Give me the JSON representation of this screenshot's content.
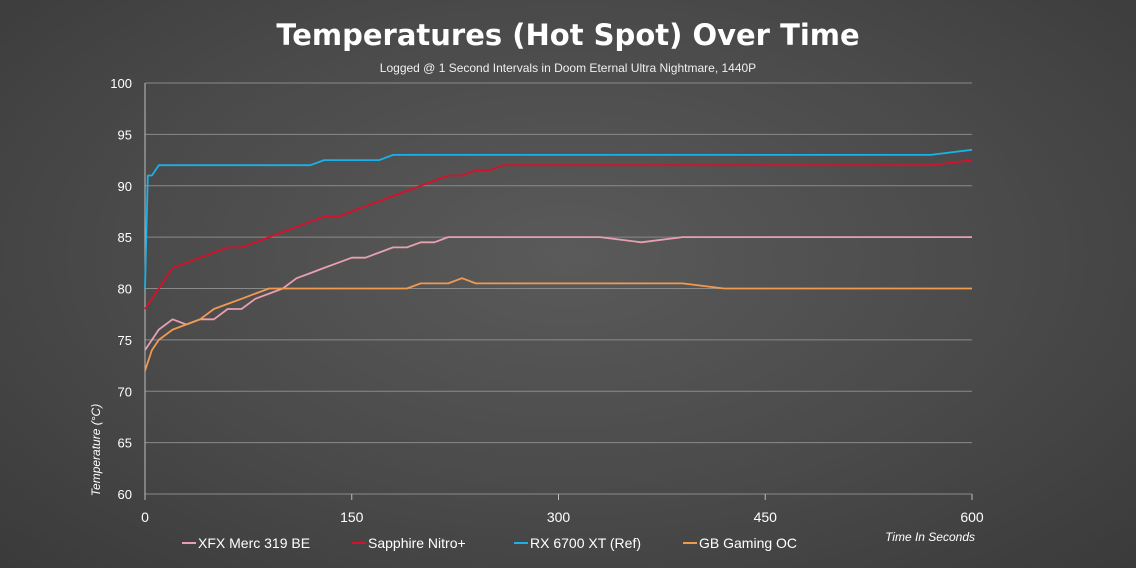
{
  "chart_data": {
    "type": "line",
    "title": "Temperatures (Hot Spot) Over Time",
    "subtitle": "Logged @ 1 Second Intervals in Doom Eternal Ultra Nightmare, 1440P",
    "xlabel": "Time In Seconds",
    "ylabel": "Temperature  (°C)",
    "xlim": [
      0,
      600
    ],
    "ylim": [
      60,
      100
    ],
    "xticks": [
      0,
      150,
      300,
      450,
      600
    ],
    "yticks": [
      60,
      65,
      70,
      75,
      80,
      85,
      90,
      95,
      100
    ],
    "grid": "horizontal",
    "legend_position": "bottom",
    "series": [
      {
        "name": "XFX Merc 319 BE",
        "color": "#e8a0b0",
        "x": [
          0,
          5,
          10,
          20,
          30,
          40,
          50,
          60,
          70,
          80,
          90,
          100,
          110,
          120,
          130,
          140,
          150,
          160,
          170,
          180,
          190,
          200,
          210,
          220,
          230,
          240,
          250,
          260,
          270,
          280,
          290,
          300,
          330,
          360,
          390,
          420,
          450,
          480,
          510,
          540,
          570,
          600
        ],
        "values": [
          74,
          75,
          76,
          77,
          76.5,
          77,
          77,
          78,
          78,
          79,
          79.5,
          80,
          81,
          81.5,
          82,
          82.5,
          83,
          83,
          83.5,
          84,
          84,
          84.5,
          84.5,
          85,
          85,
          85,
          85,
          85,
          85,
          85,
          85,
          85,
          85,
          84.5,
          85,
          85,
          85,
          85,
          85,
          85,
          85,
          85
        ]
      },
      {
        "name": "Sapphire Nitro+",
        "color": "#d8102a",
        "x": [
          0,
          5,
          10,
          20,
          30,
          40,
          50,
          60,
          70,
          80,
          90,
          100,
          110,
          120,
          130,
          140,
          150,
          160,
          170,
          180,
          190,
          200,
          210,
          220,
          230,
          240,
          250,
          260,
          270,
          280,
          290,
          300,
          330,
          360,
          390,
          420,
          450,
          480,
          510,
          540,
          570,
          600
        ],
        "values": [
          78,
          79,
          80,
          82,
          82.5,
          83,
          83.5,
          84,
          84,
          84.5,
          85,
          85.5,
          86,
          86.5,
          87,
          87,
          87.5,
          88,
          88.5,
          89,
          89.5,
          90,
          90.5,
          91,
          91,
          91.5,
          91.5,
          92,
          92,
          92,
          92,
          92,
          92,
          92,
          92,
          92,
          92,
          92,
          92,
          92,
          92,
          92.5
        ]
      },
      {
        "name": "RX 6700 XT (Ref)",
        "color": "#1ab0e8",
        "x": [
          0,
          2,
          5,
          10,
          20,
          30,
          40,
          50,
          60,
          70,
          80,
          90,
          100,
          110,
          120,
          130,
          140,
          150,
          160,
          170,
          180,
          190,
          200,
          210,
          220,
          230,
          240,
          250,
          260,
          270,
          280,
          290,
          300,
          330,
          360,
          390,
          420,
          450,
          480,
          510,
          540,
          570,
          600
        ],
        "values": [
          80,
          91,
          91,
          92,
          92,
          92,
          92,
          92,
          92,
          92,
          92,
          92,
          92,
          92,
          92,
          92.5,
          92.5,
          92.5,
          92.5,
          92.5,
          93,
          93,
          93,
          93,
          93,
          93,
          93,
          93,
          93,
          93,
          93,
          93,
          93,
          93,
          93,
          93,
          93,
          93,
          93,
          93,
          93,
          93,
          93.5
        ]
      },
      {
        "name": "GB Gaming OC",
        "color": "#f09a50",
        "x": [
          0,
          5,
          10,
          20,
          30,
          40,
          50,
          60,
          70,
          80,
          90,
          100,
          110,
          120,
          130,
          140,
          150,
          160,
          170,
          180,
          190,
          200,
          210,
          220,
          230,
          240,
          250,
          260,
          270,
          280,
          290,
          300,
          330,
          360,
          390,
          420,
          450,
          480,
          510,
          540,
          570,
          600
        ],
        "values": [
          72,
          74,
          75,
          76,
          76.5,
          77,
          78,
          78.5,
          79,
          79.5,
          80,
          80,
          80,
          80,
          80,
          80,
          80,
          80,
          80,
          80,
          80,
          80.5,
          80.5,
          80.5,
          81,
          80.5,
          80.5,
          80.5,
          80.5,
          80.5,
          80.5,
          80.5,
          80.5,
          80.5,
          80.5,
          80,
          80,
          80,
          80,
          80,
          80,
          80
        ]
      }
    ]
  }
}
